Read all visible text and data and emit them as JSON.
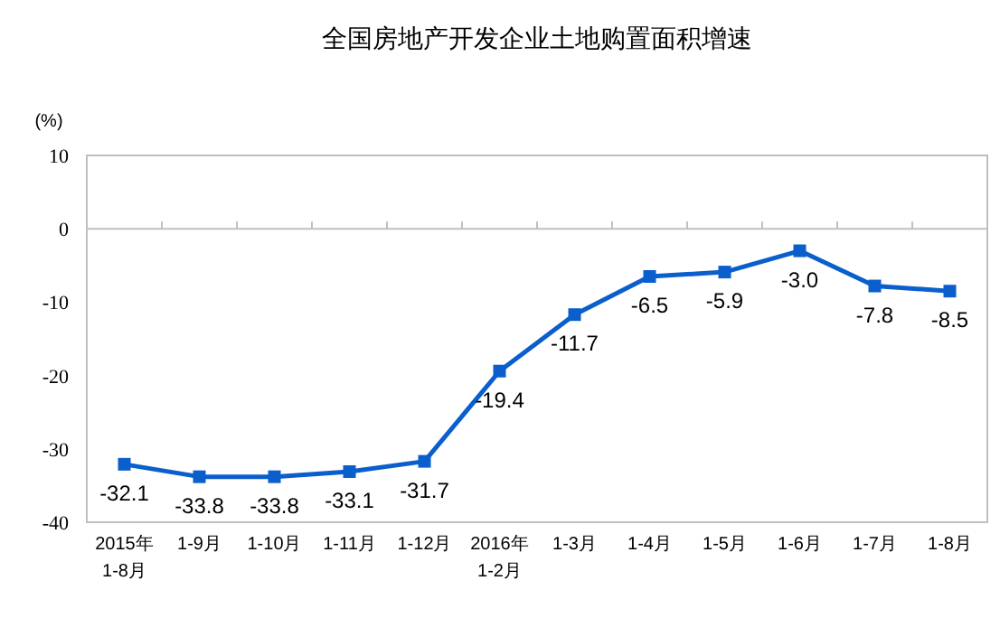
{
  "chart_data": {
    "type": "line",
    "title": "全国房地产开发企业土地购置面积增速",
    "ylabel": "(%)",
    "categories": [
      "2015年\n1-8月",
      "1-9月",
      "1-10月",
      "1-11月",
      "1-12月",
      "2016年\n1-2月",
      "1-3月",
      "1-4月",
      "1-5月",
      "1-6月",
      "1-7月",
      "1-8月"
    ],
    "series": [
      {
        "color": "#0a5fcc",
        "values": [
          -32.1,
          -33.8,
          -33.8,
          -33.1,
          -31.7,
          -19.4,
          -11.7,
          -6.5,
          -5.9,
          -3.0,
          -7.8,
          -8.5
        ],
        "value_labels": [
          "-32.1",
          "-33.8",
          "-33.8",
          "-33.1",
          "-31.7",
          "-19.4",
          "-11.7",
          "-6.5",
          "-5.9",
          "-3.0",
          "-7.8",
          "-8.5"
        ]
      }
    ],
    "ylim": [
      -40,
      10
    ],
    "yticks": [
      -40,
      -30,
      -20,
      -10,
      0,
      10
    ],
    "marker": "square",
    "line_style": "solid"
  }
}
